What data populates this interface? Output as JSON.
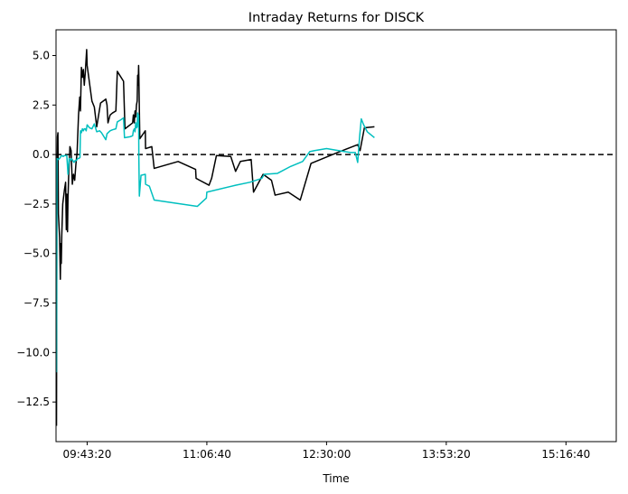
{
  "chart_data": {
    "type": "line",
    "title": "Intraday Returns for DISCK",
    "xlabel": "Time",
    "ylabel": "",
    "x_ticks": [
      "09:43:20",
      "11:06:40",
      "12:30:00",
      "13:53:20",
      "15:16:40"
    ],
    "x_tick_seconds": [
      35000,
      40000,
      45000,
      50000,
      55000
    ],
    "xlim_seconds": [
      33700,
      57100
    ],
    "y_ticks": [
      5.0,
      2.5,
      0.0,
      -2.5,
      -5.0,
      -7.5,
      -10.0,
      -12.5
    ],
    "y_tick_labels": [
      "5.0",
      "2.5",
      "0.0",
      "−2.5",
      "−5.0",
      "−7.5",
      "−10.0",
      "−12.5"
    ],
    "ylim": [
      -14.5,
      6.3
    ],
    "reference_line": {
      "y": 0,
      "style": "dashed",
      "color": "#000000"
    },
    "grid": false,
    "series": [
      {
        "color": "#000000",
        "points": [
          [
            33720,
            -13.7
          ],
          [
            33740,
            -1.2
          ],
          [
            33760,
            0.9
          ],
          [
            33780,
            1.1
          ],
          [
            33800,
            -3.0
          ],
          [
            33850,
            -4.2
          ],
          [
            33880,
            -6.3
          ],
          [
            33900,
            -4.5
          ],
          [
            33920,
            -5.5
          ],
          [
            33940,
            -4.1
          ],
          [
            33980,
            -2.5
          ],
          [
            34050,
            -1.8
          ],
          [
            34100,
            -1.4
          ],
          [
            34130,
            -3.8
          ],
          [
            34150,
            -2.0
          ],
          [
            34180,
            -3.9
          ],
          [
            34200,
            -2.2
          ],
          [
            34230,
            -1.0
          ],
          [
            34280,
            0.4
          ],
          [
            34330,
            0.2
          ],
          [
            34380,
            -1.5
          ],
          [
            34430,
            -1.0
          ],
          [
            34480,
            -1.3
          ],
          [
            34530,
            -0.5
          ],
          [
            34580,
            0.1
          ],
          [
            34640,
            2.0
          ],
          [
            34690,
            2.9
          ],
          [
            34720,
            2.2
          ],
          [
            34760,
            4.4
          ],
          [
            34800,
            3.9
          ],
          [
            34840,
            4.3
          ],
          [
            34880,
            3.5
          ],
          [
            34920,
            4.1
          ],
          [
            34960,
            4.9
          ],
          [
            34980,
            5.3
          ],
          [
            35000,
            4.5
          ],
          [
            35200,
            2.7
          ],
          [
            35300,
            2.4
          ],
          [
            35400,
            1.4
          ],
          [
            35560,
            2.6
          ],
          [
            35780,
            2.8
          ],
          [
            35830,
            2.5
          ],
          [
            35870,
            1.6
          ],
          [
            35960,
            2.0
          ],
          [
            36060,
            2.1
          ],
          [
            36200,
            2.2
          ],
          [
            36260,
            4.2
          ],
          [
            36520,
            3.7
          ],
          [
            36580,
            1.3
          ],
          [
            36900,
            1.6
          ],
          [
            36930,
            2.0
          ],
          [
            36970,
            1.6
          ],
          [
            37000,
            2.2
          ],
          [
            37030,
            1.9
          ],
          [
            37060,
            2.5
          ],
          [
            37090,
            2.7
          ],
          [
            37110,
            4.0
          ],
          [
            37130,
            3.5
          ],
          [
            37150,
            4.5
          ],
          [
            37160,
            3.9
          ],
          [
            37180,
            2.3
          ],
          [
            37200,
            0.8
          ],
          [
            37430,
            1.2
          ],
          [
            37440,
            0.3
          ],
          [
            37700,
            0.4
          ],
          [
            37800,
            -0.7
          ],
          [
            38800,
            -0.35
          ],
          [
            39530,
            -0.75
          ],
          [
            39550,
            -1.2
          ],
          [
            39700,
            -1.3
          ],
          [
            40090,
            -1.55
          ],
          [
            40200,
            -1.2
          ],
          [
            40400,
            -0.05
          ],
          [
            41000,
            -0.1
          ],
          [
            41200,
            -0.85
          ],
          [
            41400,
            -0.35
          ],
          [
            41850,
            -0.25
          ],
          [
            41950,
            -1.9
          ],
          [
            42350,
            -1.0
          ],
          [
            42700,
            -1.3
          ],
          [
            42850,
            -2.05
          ],
          [
            43400,
            -1.9
          ],
          [
            43900,
            -2.3
          ],
          [
            44350,
            -0.45
          ],
          [
            45350,
            0.05
          ],
          [
            46300,
            0.5
          ],
          [
            46400,
            0.2
          ],
          [
            46580,
            1.35
          ],
          [
            47000,
            1.4
          ]
        ]
      },
      {
        "color": "#00BFBF",
        "points": [
          [
            33720,
            -11.0
          ],
          [
            33740,
            -0.2
          ],
          [
            33800,
            -0.25
          ],
          [
            33850,
            -0.2
          ],
          [
            33900,
            -0.1
          ],
          [
            33950,
            -0.05
          ],
          [
            34000,
            -0.1
          ],
          [
            34050,
            -0.05
          ],
          [
            34100,
            -0.05
          ],
          [
            34150,
            -0.05
          ],
          [
            34200,
            -1.0
          ],
          [
            34250,
            -0.2
          ],
          [
            34300,
            -0.3
          ],
          [
            34350,
            -0.2
          ],
          [
            34400,
            -0.3
          ],
          [
            34450,
            -0.4
          ],
          [
            34500,
            -0.3
          ],
          [
            34550,
            -0.3
          ],
          [
            34600,
            -0.2
          ],
          [
            34650,
            -0.2
          ],
          [
            34700,
            -0.15
          ],
          [
            34720,
            1.2
          ],
          [
            34760,
            1.1
          ],
          [
            34800,
            1.3
          ],
          [
            34840,
            1.2
          ],
          [
            34880,
            1.3
          ],
          [
            34920,
            1.3
          ],
          [
            34960,
            1.2
          ],
          [
            35000,
            1.5
          ],
          [
            35100,
            1.35
          ],
          [
            35200,
            1.3
          ],
          [
            35300,
            1.55
          ],
          [
            35400,
            1.15
          ],
          [
            35520,
            1.2
          ],
          [
            35600,
            1.1
          ],
          [
            35780,
            0.75
          ],
          [
            35830,
            1.05
          ],
          [
            35960,
            1.2
          ],
          [
            36060,
            1.25
          ],
          [
            36200,
            1.3
          ],
          [
            36260,
            1.65
          ],
          [
            36400,
            1.75
          ],
          [
            36520,
            1.85
          ],
          [
            36560,
            0.85
          ],
          [
            36800,
            0.9
          ],
          [
            36900,
            0.95
          ],
          [
            36930,
            1.2
          ],
          [
            36970,
            1.3
          ],
          [
            37000,
            1.15
          ],
          [
            37030,
            1.6
          ],
          [
            37060,
            1.35
          ],
          [
            37090,
            1.4
          ],
          [
            37110,
            2.1
          ],
          [
            37130,
            1.8
          ],
          [
            37150,
            2.0
          ],
          [
            37160,
            -0.2
          ],
          [
            37180,
            -2.1
          ],
          [
            37250,
            -1.05
          ],
          [
            37430,
            -1.0
          ],
          [
            37440,
            -1.5
          ],
          [
            37600,
            -1.6
          ],
          [
            37800,
            -2.3
          ],
          [
            39600,
            -2.62
          ],
          [
            39800,
            -2.4
          ],
          [
            39980,
            -2.2
          ],
          [
            40000,
            -1.9
          ],
          [
            41200,
            -1.55
          ],
          [
            41800,
            -1.4
          ],
          [
            42300,
            -1.2
          ],
          [
            42400,
            -1.0
          ],
          [
            42950,
            -0.95
          ],
          [
            43500,
            -0.6
          ],
          [
            44000,
            -0.35
          ],
          [
            44300,
            0.15
          ],
          [
            44500,
            0.2
          ],
          [
            45000,
            0.3
          ],
          [
            45500,
            0.2
          ],
          [
            46000,
            0.1
          ],
          [
            46200,
            0.1
          ],
          [
            46300,
            -0.4
          ],
          [
            46380,
            0.9
          ],
          [
            46450,
            1.8
          ],
          [
            46550,
            1.5
          ],
          [
            46700,
            1.15
          ],
          [
            47000,
            0.85
          ]
        ]
      }
    ]
  }
}
